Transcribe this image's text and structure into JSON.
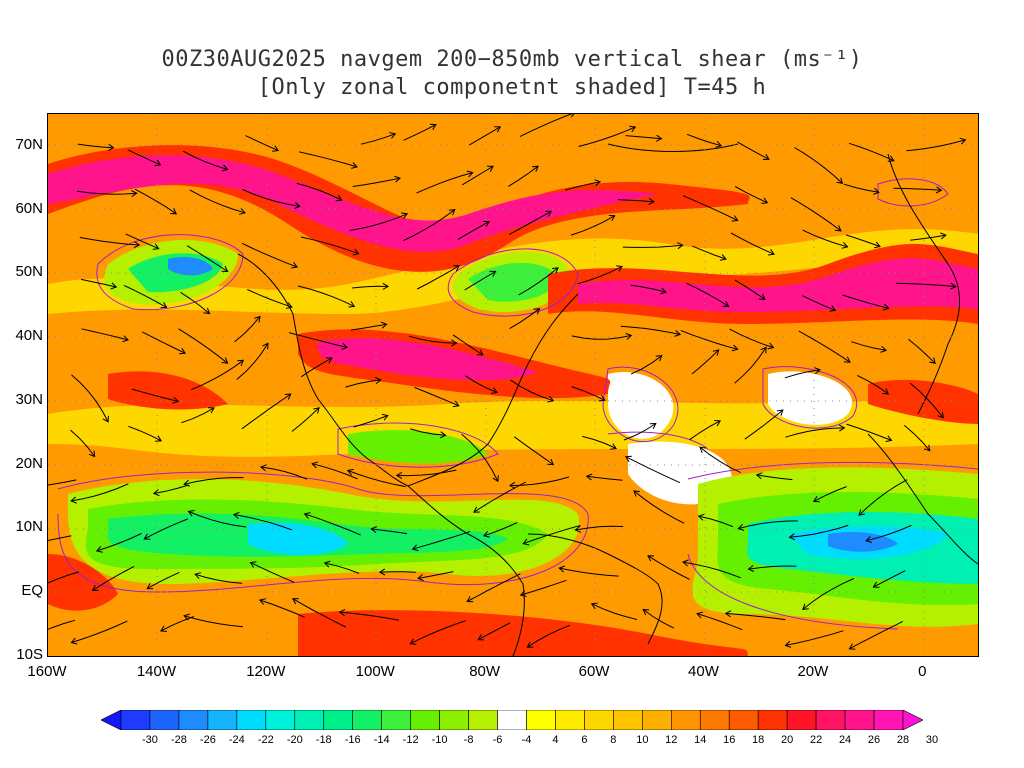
{
  "title": {
    "line1": "00Z30AUG2025 navgem 200−850mb vertical shear (ms⁻¹)",
    "line2": "[Only zonal componetnt shaded] T=45 h"
  },
  "axes": {
    "lat_labels": [
      "70N",
      "60N",
      "50N",
      "40N",
      "30N",
      "20N",
      "10N",
      "EQ",
      "10S"
    ],
    "lat_values": [
      70,
      60,
      50,
      40,
      30,
      20,
      10,
      0,
      -10
    ],
    "lon_labels": [
      "160W",
      "140W",
      "120W",
      "100W",
      "80W",
      "60W",
      "40W",
      "20W",
      "0"
    ],
    "lon_values": [
      -160,
      -140,
      -120,
      -100,
      -80,
      -60,
      -40,
      -20,
      0
    ],
    "lon_range": [
      -160,
      10
    ],
    "lat_range": [
      -10,
      75
    ]
  },
  "colorbar": {
    "labels": [
      "-30",
      "-28",
      "-26",
      "-24",
      "-22",
      "-20",
      "-18",
      "-16",
      "-14",
      "-12",
      "-10",
      "-8",
      "-6",
      "-4",
      "4",
      "6",
      "8",
      "10",
      "12",
      "14",
      "16",
      "18",
      "20",
      "22",
      "24",
      "26",
      "28",
      "30"
    ],
    "colors": [
      "#1414ff",
      "#1e3cff",
      "#1e64ff",
      "#1e8cff",
      "#14b4ff",
      "#00dcff",
      "#00f0dc",
      "#00f0b4",
      "#00f08c",
      "#14f064",
      "#3cf03c",
      "#64f000",
      "#8cf000",
      "#b4f000",
      "#ffffff",
      "#ffff00",
      "#ffeb00",
      "#ffd700",
      "#ffc300",
      "#ffaf00",
      "#ff9600",
      "#ff7800",
      "#ff5a00",
      "#ff3200",
      "#ff1428",
      "#ff1464",
      "#ff148c",
      "#ff14b4",
      "#ff14d2"
    ]
  },
  "map_style": {
    "ocean_fill": "#ff9600",
    "contour_color": "#a020c8",
    "coast_color": "#000000",
    "streamline_color": "#000000"
  }
}
